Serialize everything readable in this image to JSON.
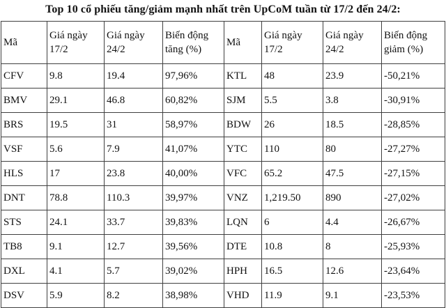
{
  "page": {
    "title": "Top 10 cổ phiếu tăng/giảm mạnh nhất trên UpCoM tuần từ 17/2 đến 24/2:"
  },
  "colors": {
    "background": "#ffffff",
    "text": "#111111",
    "table_border": "#3f3f3f"
  },
  "table": {
    "gainers": {
      "headers": [
        "Mã",
        "Giá ngày 17/2",
        "Giá ngày 24/2",
        "Biến động tăng (%)"
      ],
      "rows": [
        [
          "CFV",
          "9.8",
          "19.4",
          "97,96%"
        ],
        [
          "BMV",
          "29.1",
          "46.8",
          "60,82%"
        ],
        [
          "BRS",
          "19.5",
          "31",
          "58,97%"
        ],
        [
          "VSF",
          "5.6",
          "7.9",
          "41,07%"
        ],
        [
          "HLS",
          "17",
          "23.8",
          "40,00%"
        ],
        [
          "DNT",
          "78.8",
          "110.3",
          "39,97%"
        ],
        [
          "STS",
          "24.1",
          "33.7",
          "39,83%"
        ],
        [
          "TB8",
          "9.1",
          "12.7",
          "39,56%"
        ],
        [
          "DXL",
          "4.1",
          "5.7",
          "39,02%"
        ],
        [
          "DSV",
          "5.9",
          "8.2",
          "38,98%"
        ]
      ]
    },
    "losers": {
      "headers": [
        "Mã",
        "Giá ngày 17/2",
        "Giá ngày 24/2",
        "Biến động giảm (%)"
      ],
      "rows": [
        [
          "KTL",
          "48",
          "23.9",
          "-50,21%"
        ],
        [
          "SJM",
          "5.5",
          "3.8",
          "-30,91%"
        ],
        [
          "BDW",
          "26",
          "18.5",
          "-28,85%"
        ],
        [
          "YTC",
          "110",
          "80",
          "-27,27%"
        ],
        [
          "VFC",
          "65.2",
          "47.5",
          "-27,15%"
        ],
        [
          "VNZ",
          "1,219.50",
          "890",
          "-27,02%"
        ],
        [
          "LQN",
          "6",
          "4.4",
          "-26,67%"
        ],
        [
          "DTE",
          "10.8",
          "8",
          "-25,93%"
        ],
        [
          "HPH",
          "16.5",
          "12.6",
          "-23,64%"
        ],
        [
          "VHD",
          "11.9",
          "9.1",
          "-23,53%"
        ]
      ]
    }
  }
}
